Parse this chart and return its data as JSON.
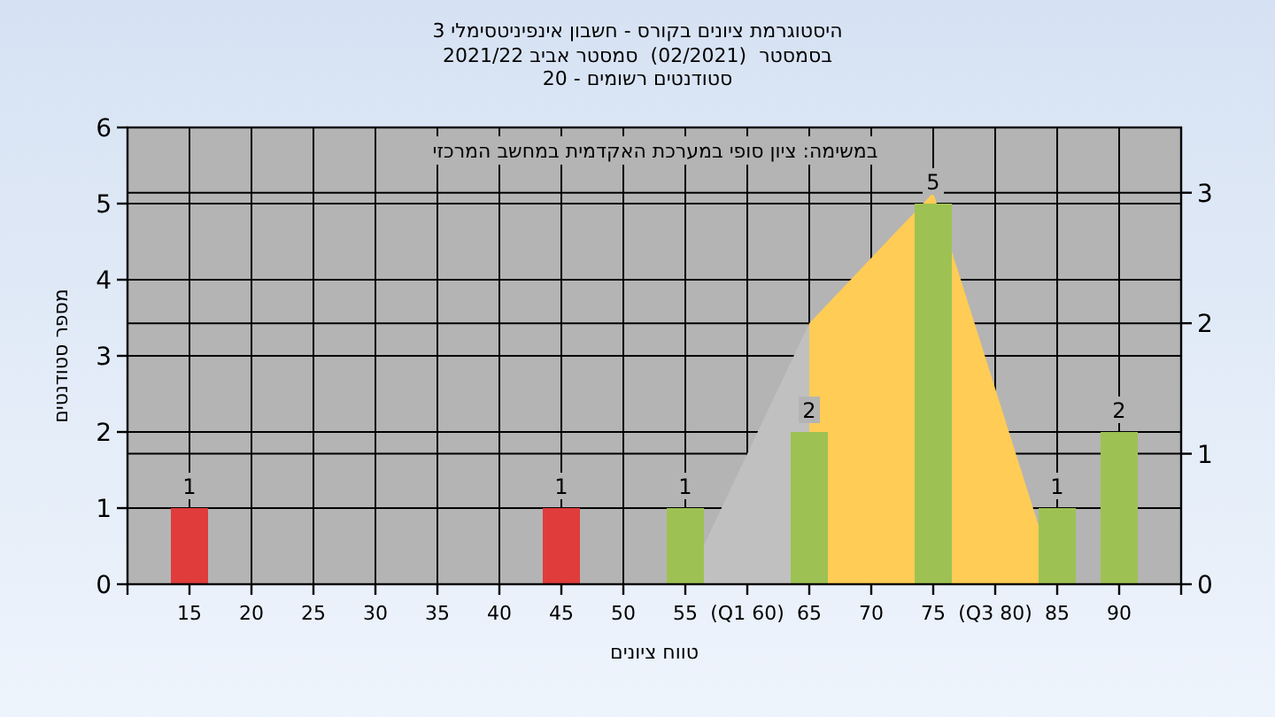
{
  "chart_data": {
    "type": "bar",
    "title": "היסטוגרמת ציונים בקורס - חשבון אינפיניטסימלי 3",
    "subtitle": "בסמסטר  (02/2021)  סמסטר אביב 2021/22",
    "xlabel": "טווח ציונים",
    "ylabel": "מספר סטודנטים",
    "annotations": [
      "סטודנטים רשומים - 20",
      "במשימה: ציון סופי במערכת האקדמית במחשב המרכזי"
    ],
    "xlim": [
      10,
      95
    ],
    "xticks": [
      {
        "value": 10,
        "label": null
      },
      15,
      20,
      25,
      30,
      35,
      40,
      45,
      50,
      55,
      {
        "value": 60,
        "label": "(Q1 60)"
      },
      65,
      70,
      75,
      {
        "value": 80,
        "label": "(Q3 80)"
      },
      85,
      90,
      {
        "value": 95,
        "label": null
      }
    ],
    "ylim": [
      0,
      6
    ],
    "yticks": [
      0,
      1,
      2,
      3,
      4,
      5,
      6
    ],
    "y2lim": [
      0,
      3.5
    ],
    "y2ticks": [
      0,
      1,
      2,
      3
    ],
    "grid": true,
    "series": [
      {
        "type": "area",
        "axis": "y2",
        "color": "#c0c0c0",
        "x": [
          55,
          65
        ],
        "values": [
          0,
          2
        ]
      },
      {
        "type": "area",
        "axis": "y2",
        "color": "#ffcc55",
        "x": [
          65,
          75,
          85
        ],
        "values": [
          2,
          3,
          0
        ]
      },
      {
        "data_labels": true,
        "x": [
          15,
          45,
          55,
          65,
          75,
          85,
          90
        ],
        "values": [
          1,
          1,
          1,
          2,
          5,
          1,
          2
        ],
        "colors": [
          "#e03c3c",
          "#e03c3c",
          "#9dc253",
          "#9dc253",
          "#9dc253",
          "#9dc253",
          "#9dc253"
        ]
      }
    ]
  }
}
